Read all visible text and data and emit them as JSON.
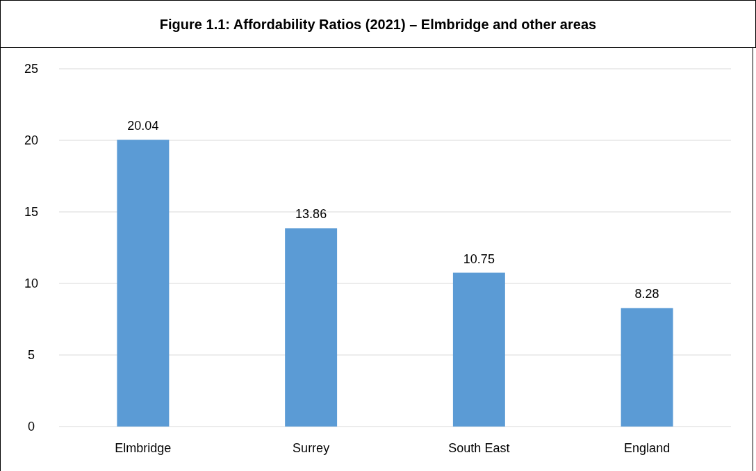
{
  "chart_data": {
    "type": "bar",
    "title": "Figure 1.1: Affordability Ratios (2021) – Elmbridge and other areas",
    "categories": [
      "Elmbridge",
      "Surrey",
      "South East",
      "England"
    ],
    "values": [
      20.04,
      13.86,
      10.75,
      8.28
    ],
    "color": "#5b9bd5",
    "ylim": [
      0,
      25
    ],
    "yticks": [
      0,
      5,
      10,
      15,
      20,
      25
    ],
    "grid": "y",
    "data_labels": true
  }
}
